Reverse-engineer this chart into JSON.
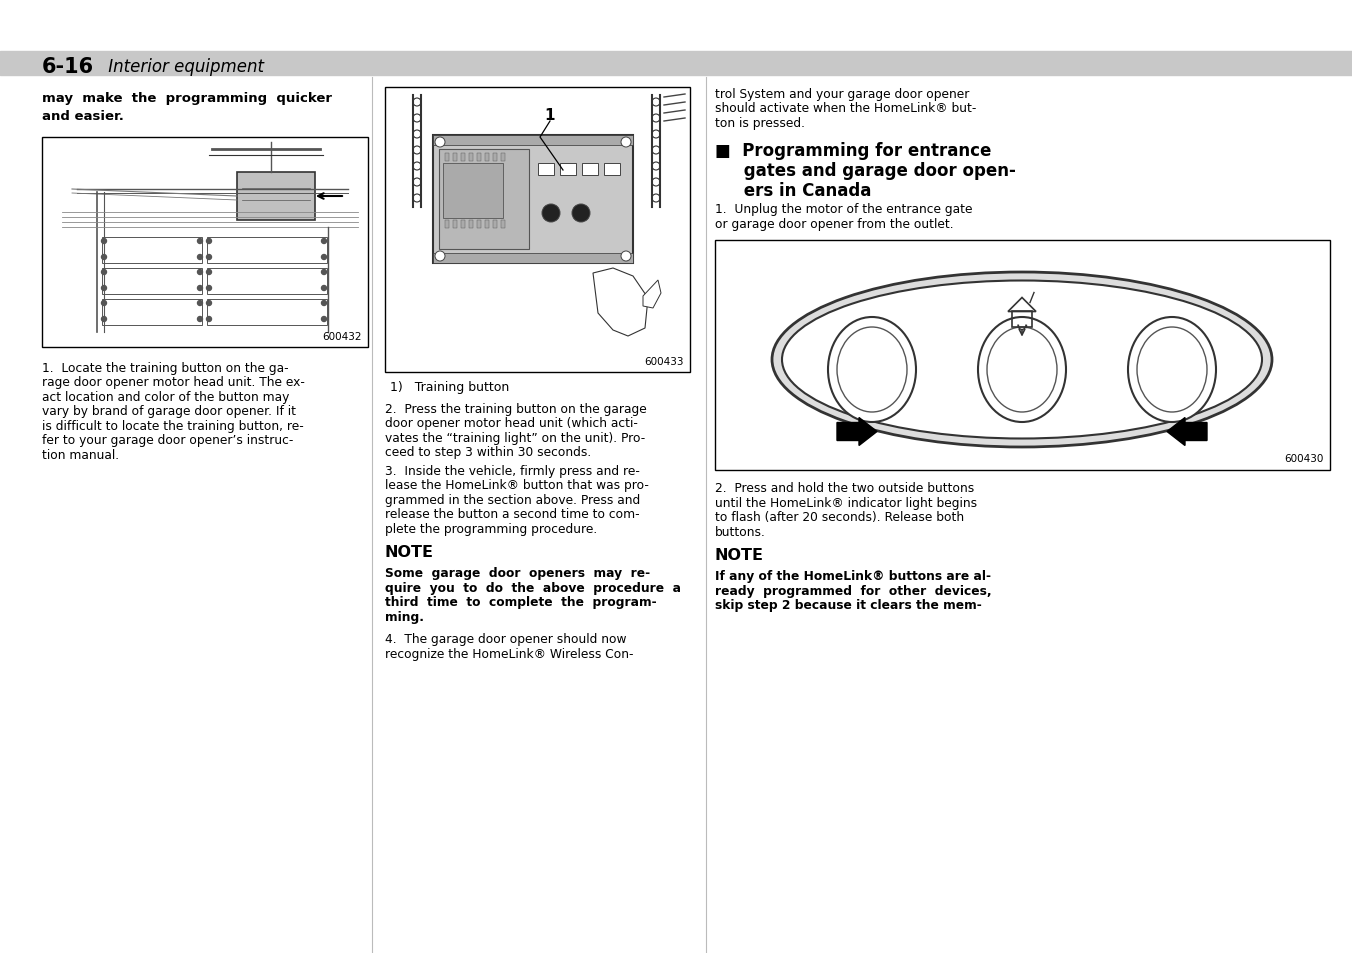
{
  "page_header_bold": "6-16",
  "page_header_italic": " Interior equipment",
  "header_bar_color": "#c8c8c8",
  "background_color": "#ffffff",
  "fig1_caption_num": "600432",
  "fig2_label": "1",
  "fig2_caption": "1)   Training button",
  "fig2_caption_num": "600433",
  "fig3_caption_num": "600430",
  "col1_intro_line1": "may  make  the  programming  quicker",
  "col1_intro_line2": "and easier.",
  "col1_body": "1.  Locate the training button on the garage door opener motor head unit. The exact location and color of the button may vary by brand of garage door opener. If it is difficult to locate the training button, refer to your garage door opener’s instruction manual.",
  "col2_step2": "2.  Press the training button on the garage door opener motor head unit (which activates the “training light” on the unit). Proceed to step 3 within 30 seconds.",
  "col2_step3": "3.  Inside the vehicle, firmly press and release the HomeLink® button that was programmed in the section above. Press and release the button a second time to complete the programming procedure.",
  "col2_note_head": "NOTE",
  "col2_note_body_bold": "Some  garage  door  openers  may  re-\nquire  you  to  do  the  above  procedure  a\nthird  time  to  complete  the  program-\nming.",
  "col2_step4": "4.  The garage door opener should now\nrecognize the HomeLink® Wireless Con-",
  "col3_intro": "trol System and your garage door opener\nshould activate when the HomeLink® but-\nton is pressed.",
  "col3_section_line1": "■  Programming for entrance",
  "col3_section_line2": "     gates and garage door open-",
  "col3_section_line3": "     ers in Canada",
  "col3_step1": "1.  Unplug the motor of the entrance gate\nor garage door opener from the outlet.",
  "col3_step2": "2.  Press and hold the two outside buttons\nuntil the HomeLink® indicator light begins\nto flash (after 20 seconds). Release both\nbuttons.",
  "col3_note_head": "NOTE",
  "col3_note_body_bold": "If any of the HomeLink® buttons are al-\nready  programmed  for  other  devices,\nskip step 2 because it clears the mem-"
}
